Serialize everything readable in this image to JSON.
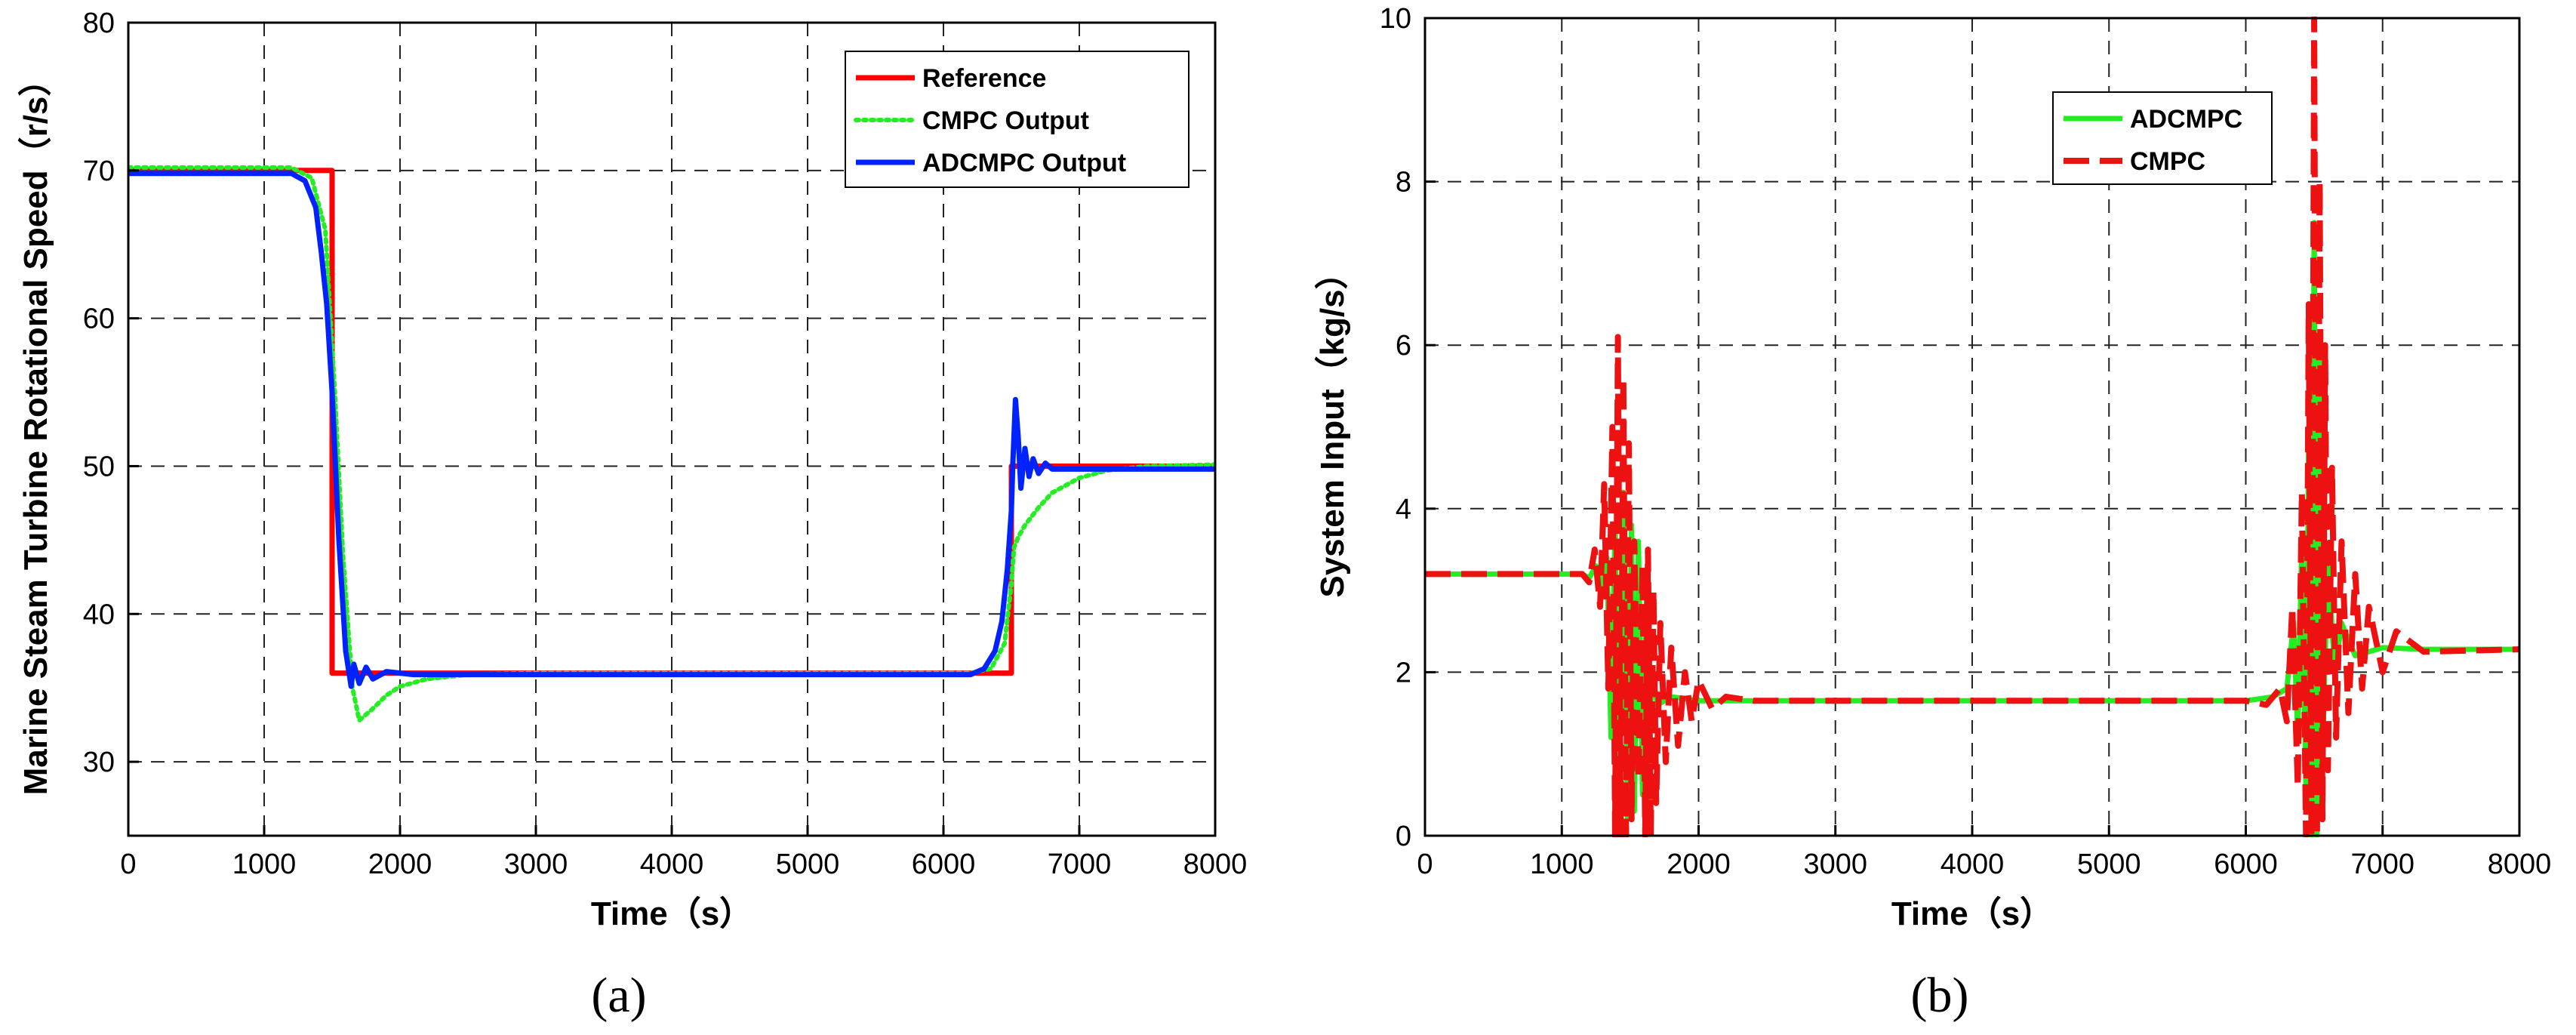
{
  "chart_data": [
    {
      "type": "line",
      "panel_label": "(a)",
      "xlabel": "Time（s）",
      "ylabel": "Marine Steam Turbine Rotational Speed（r/s）",
      "xlim": [
        0,
        8000
      ],
      "ylim": [
        25,
        80
      ],
      "xticks": [
        0,
        1000,
        2000,
        3000,
        4000,
        5000,
        6000,
        7000,
        8000
      ],
      "yticks": [
        30,
        40,
        50,
        60,
        70,
        80
      ],
      "grid": true,
      "legend_position": "top-right",
      "series": [
        {
          "name": "Reference",
          "color": "#ff0000",
          "style": "solid",
          "x": [
            0,
            1500,
            1500,
            6500,
            6500,
            8000
          ],
          "y": [
            70,
            70,
            36,
            36,
            50,
            50
          ]
        },
        {
          "name": "CMPC Output",
          "color": "#22ee22",
          "style": "dotted",
          "x": [
            0,
            1200,
            1350,
            1450,
            1520,
            1580,
            1650,
            1700,
            1800,
            1900,
            2000,
            2200,
            2500,
            3000,
            6200,
            6350,
            6450,
            6500,
            6520,
            6550,
            6600,
            6700,
            6800,
            7000,
            7200,
            7500,
            8000
          ],
          "y": [
            70.2,
            70.2,
            69.5,
            66,
            55,
            44,
            35,
            32.8,
            33.6,
            34.5,
            35.1,
            35.6,
            35.9,
            36,
            36,
            36.3,
            38,
            42,
            44.5,
            45.2,
            46,
            47.2,
            48.2,
            49.2,
            49.7,
            50,
            50.1
          ]
        },
        {
          "name": "ADCMPC Output",
          "color": "#0022ff",
          "style": "solid",
          "x": [
            0,
            1200,
            1300,
            1380,
            1420,
            1460,
            1500,
            1550,
            1600,
            1640,
            1660,
            1700,
            1750,
            1800,
            1900,
            2100,
            3000,
            6200,
            6300,
            6380,
            6430,
            6470,
            6500,
            6510,
            6530,
            6550,
            6570,
            6600,
            6630,
            6660,
            6700,
            6750,
            6800,
            7000,
            8000
          ],
          "y": [
            69.8,
            69.8,
            69.3,
            67.5,
            64.5,
            61,
            55,
            45,
            37.5,
            35.1,
            36.6,
            35.3,
            36.4,
            35.6,
            36.1,
            35.9,
            35.9,
            35.9,
            36.3,
            37.5,
            39.5,
            43,
            47,
            50,
            54.5,
            52,
            48.5,
            51.2,
            49.3,
            50.5,
            49.5,
            50.2,
            49.8,
            49.8,
            49.8
          ]
        }
      ]
    },
    {
      "type": "line",
      "panel_label": "(b)",
      "xlabel": "Time（s）",
      "ylabel": "System Input（kg/s）",
      "xlim": [
        0,
        8000
      ],
      "ylim": [
        0,
        10
      ],
      "xticks": [
        0,
        1000,
        2000,
        3000,
        4000,
        5000,
        6000,
        7000,
        8000
      ],
      "yticks": [
        0,
        2,
        4,
        6,
        8,
        10
      ],
      "grid": true,
      "legend_position": "top-center",
      "series": [
        {
          "name": "ADCMPC",
          "color": "#22ee22",
          "style": "solid",
          "x": [
            0,
            1150,
            1200,
            1250,
            1300,
            1330,
            1360,
            1390,
            1420,
            1450,
            1480,
            1510,
            1530,
            1560,
            1590,
            1620,
            1640,
            1660,
            1700,
            1800,
            2000,
            3000,
            6000,
            6200,
            6300,
            6350,
            6380,
            6410,
            6440,
            6460,
            6480,
            6500,
            6520,
            6540,
            6560,
            6600,
            6650,
            6700,
            6800,
            7000,
            7300,
            8000
          ],
          "y": [
            3.2,
            3.2,
            3.15,
            3.3,
            3.0,
            3.4,
            1.2,
            3.8,
            0,
            4.2,
            0.2,
            3.8,
            0.3,
            3.6,
            0.5,
            3.0,
            1.2,
            2.0,
            1.6,
            1.7,
            1.65,
            1.65,
            1.65,
            1.7,
            1.8,
            2.6,
            1.2,
            3.6,
            0.5,
            5.0,
            0,
            7.5,
            0,
            6.0,
            1.0,
            3.4,
            2.0,
            2.6,
            2.2,
            2.3,
            2.28,
            2.28
          ]
        },
        {
          "name": "CMPC",
          "color": "#ee1111",
          "style": "dashed",
          "x": [
            0,
            1150,
            1200,
            1240,
            1280,
            1310,
            1340,
            1370,
            1390,
            1410,
            1430,
            1450,
            1470,
            1490,
            1510,
            1530,
            1560,
            1590,
            1610,
            1630,
            1650,
            1670,
            1690,
            1720,
            1760,
            1800,
            1850,
            1900,
            1950,
            2000,
            2100,
            2200,
            2400,
            3000,
            6000,
            6150,
            6250,
            6300,
            6340,
            6380,
            6410,
            6440,
            6460,
            6480,
            6500,
            6520,
            6540,
            6560,
            6580,
            6600,
            6630,
            6660,
            6700,
            6750,
            6800,
            6850,
            6900,
            7000,
            7100,
            7300,
            8000
          ],
          "y": [
            3.2,
            3.2,
            3.1,
            3.5,
            2.8,
            4.3,
            1.8,
            5.0,
            0,
            6.1,
            0,
            5.6,
            0,
            4.8,
            0.2,
            3.6,
            0.7,
            3.3,
            0,
            3.5,
            0,
            3.0,
            0.4,
            2.6,
            0.9,
            2.3,
            1.1,
            2.0,
            1.4,
            1.9,
            1.55,
            1.7,
            1.65,
            1.65,
            1.65,
            1.6,
            1.8,
            1.4,
            2.8,
            0.6,
            4.2,
            0,
            6.5,
            0,
            10,
            0,
            8.0,
            0.2,
            6.0,
            0.8,
            4.5,
            1.2,
            3.6,
            1.5,
            3.2,
            1.8,
            2.8,
            2.0,
            2.5,
            2.25,
            2.28
          ]
        }
      ]
    }
  ]
}
